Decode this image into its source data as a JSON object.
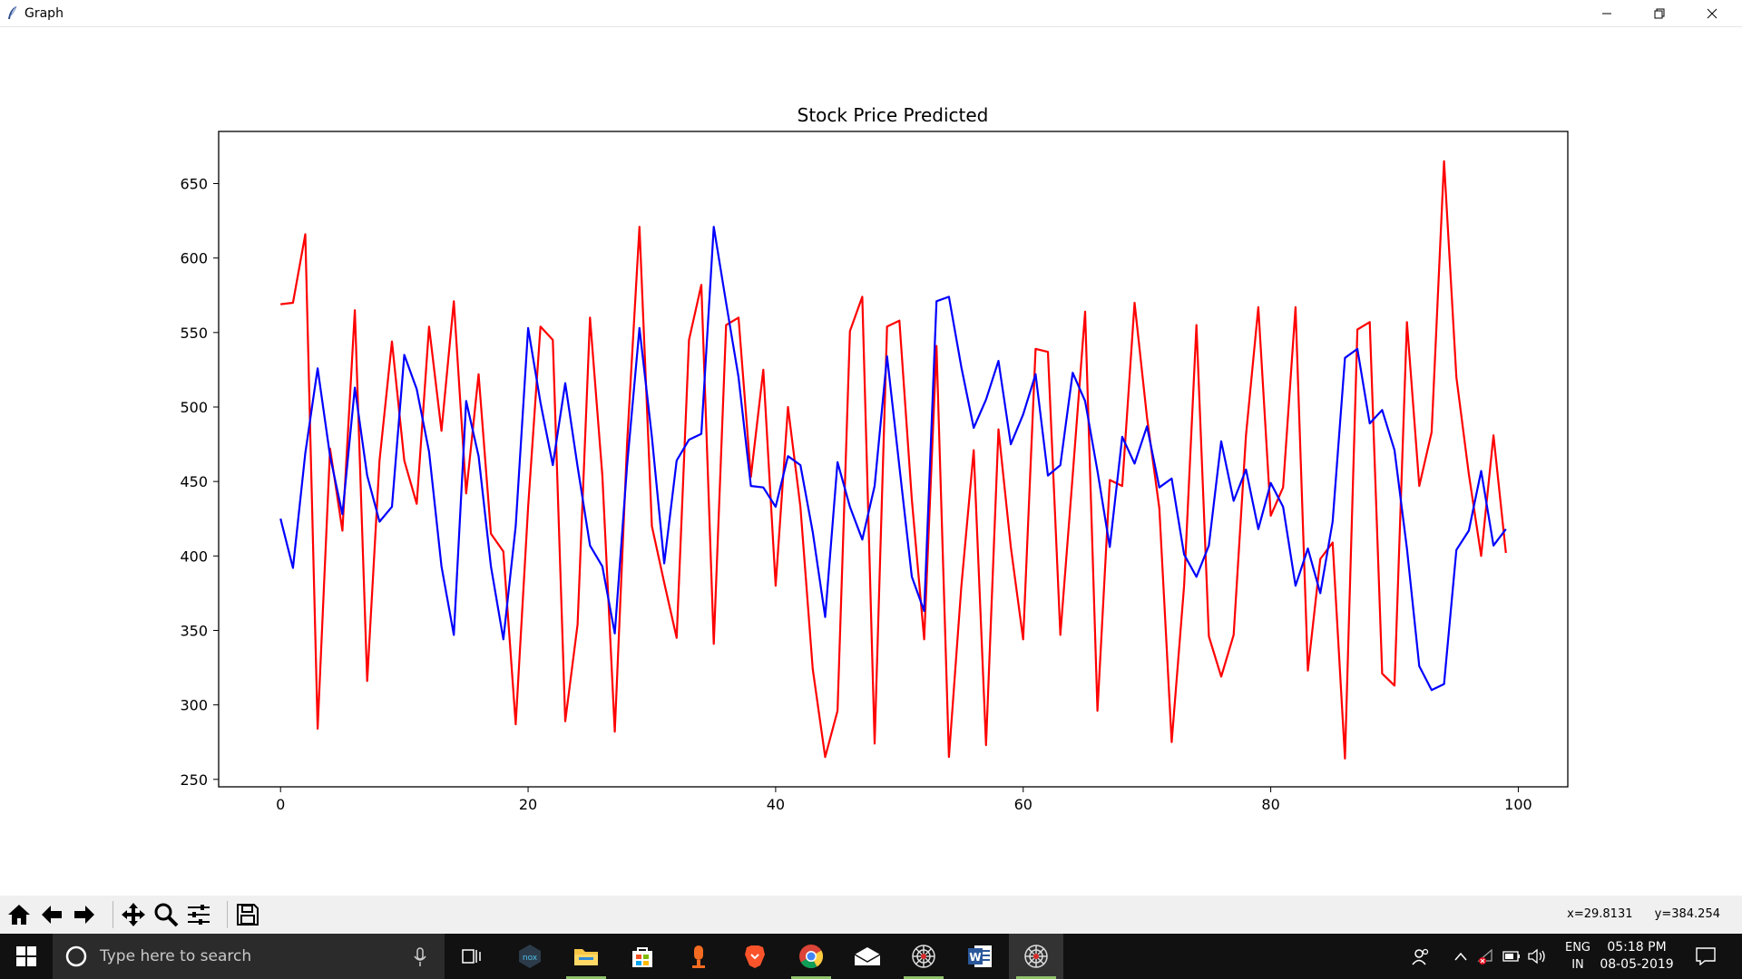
{
  "window": {
    "title": "Graph"
  },
  "toolbar": {
    "coords_x": "x=29.8131",
    "coords_y": "y=384.254"
  },
  "taskbar": {
    "search_placeholder": "Type here to search",
    "lang_line1": "ENG",
    "lang_line2": "IN",
    "time": "05:18 PM",
    "date": "08-05-2019"
  },
  "colors": {
    "red_series": "#ff0000",
    "blue_series": "#0000ff",
    "taskbar": "#111111",
    "toolbar": "#f0f0f0"
  },
  "chart_data": {
    "type": "line",
    "title": "Stock Price Predicted",
    "xlabel": "",
    "ylabel": "",
    "xlim": [
      -5,
      104
    ],
    "ylim": [
      245,
      685
    ],
    "xticks": [
      0,
      20,
      40,
      60,
      80,
      100
    ],
    "yticks": [
      250,
      300,
      350,
      400,
      450,
      500,
      550,
      600,
      650
    ],
    "x": [
      0,
      1,
      2,
      3,
      4,
      5,
      6,
      7,
      8,
      9,
      10,
      11,
      12,
      13,
      14,
      15,
      16,
      17,
      18,
      19,
      20,
      21,
      22,
      23,
      24,
      25,
      26,
      27,
      28,
      29,
      30,
      31,
      32,
      33,
      34,
      35,
      36,
      37,
      38,
      39,
      40,
      41,
      42,
      43,
      44,
      45,
      46,
      47,
      48,
      49,
      50,
      51,
      52,
      53,
      54,
      55,
      56,
      57,
      58,
      59,
      60,
      61,
      62,
      63,
      64,
      65,
      66,
      67,
      68,
      69,
      70,
      71,
      72,
      73,
      74,
      75,
      76,
      77,
      78,
      79,
      80,
      81,
      82,
      83,
      84,
      85,
      86,
      87,
      88,
      89,
      90,
      91,
      92,
      93,
      94,
      95,
      96,
      97,
      98,
      99
    ],
    "series": [
      {
        "color": "#ff0000",
        "values": [
          569,
          570,
          616,
          284,
          472,
          417,
          565,
          316,
          464,
          544,
          464,
          435,
          554,
          484,
          571,
          442,
          522,
          415,
          403,
          287,
          433,
          554,
          545,
          289,
          354,
          560,
          454,
          282,
          476,
          621,
          420,
          382,
          345,
          545,
          582,
          341,
          555,
          560,
          453,
          525,
          380,
          500,
          433,
          324,
          265,
          296,
          551,
          574,
          274,
          554,
          558,
          438,
          344,
          541,
          265,
          379,
          471,
          273,
          485,
          406,
          344,
          539,
          537,
          347,
          454,
          564,
          296,
          451,
          447,
          570,
          493,
          432,
          275,
          380,
          555,
          346,
          319,
          347,
          481,
          567,
          427,
          446,
          567,
          323,
          398,
          409,
          264,
          552,
          557,
          321,
          313,
          557,
          447,
          483,
          665,
          520,
          455,
          400,
          481,
          402
        ]
      },
      {
        "color": "#0000ff",
        "values": [
          425,
          392,
          469,
          526,
          467,
          428,
          513,
          454,
          423,
          433,
          535,
          512,
          470,
          393,
          347,
          504,
          467,
          393,
          344,
          420,
          553,
          503,
          461,
          516,
          460,
          407,
          393,
          348,
          461,
          553,
          480,
          395,
          464,
          478,
          482,
          621,
          570,
          520,
          447,
          446,
          433,
          467,
          461,
          416,
          359,
          463,
          433,
          411,
          447,
          534,
          460,
          386,
          363,
          571,
          574,
          527,
          486,
          505,
          531,
          475,
          495,
          522,
          454,
          461,
          523,
          504,
          457,
          406,
          480,
          462,
          487,
          446,
          452,
          401,
          386,
          407,
          477,
          437,
          458,
          418,
          449,
          433,
          380,
          405,
          375,
          423,
          533,
          539,
          489,
          498,
          471,
          405,
          326,
          310,
          314,
          404,
          417,
          457,
          407,
          418
        ]
      }
    ]
  }
}
